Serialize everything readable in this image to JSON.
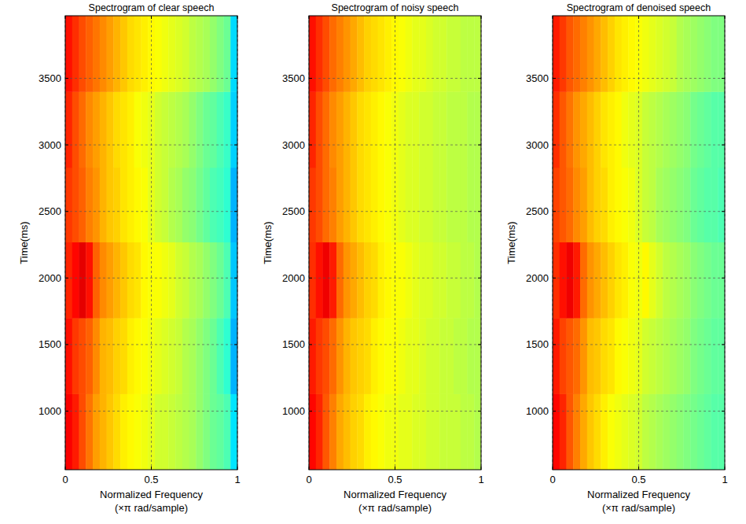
{
  "chart_data": [
    {
      "type": "heatmap",
      "title": "Spectrogram of clear speech",
      "xlabel": "Normalized Frequency\n(×π rad/sample)",
      "ylabel": "Time(ms)",
      "xlim": [
        0,
        1
      ],
      "ylim": [
        560,
        3970
      ],
      "xticks": [
        0,
        0.5,
        1
      ],
      "yticks": [
        1000,
        1500,
        2000,
        2500,
        3000,
        3500
      ],
      "grid": true,
      "clim": [
        0,
        100
      ],
      "time_edges": [
        560,
        1130,
        1700,
        2270,
        2830,
        3400,
        3970
      ],
      "freq_edges": [
        0,
        0.04,
        0.08,
        0.12,
        0.16,
        0.2,
        0.24,
        0.28,
        0.32,
        0.36,
        0.4,
        0.44,
        0.48,
        0.52,
        0.56,
        0.6,
        0.64,
        0.68,
        0.72,
        0.76,
        0.8,
        0.84,
        0.88,
        0.92,
        0.96,
        1
      ],
      "cells": [
        [
          88,
          85,
          80,
          76,
          72,
          70,
          68,
          66,
          64,
          63,
          62,
          61,
          60,
          58,
          58,
          57,
          56,
          55,
          54,
          52,
          50,
          48,
          47,
          45,
          35
        ],
        [
          86,
          82,
          80,
          78,
          74,
          70,
          69,
          67,
          66,
          64,
          63,
          62,
          61,
          60,
          59,
          58,
          57,
          55,
          54,
          52,
          50,
          48,
          45,
          42,
          30
        ],
        [
          84,
          87,
          90,
          86,
          78,
          74,
          72,
          70,
          68,
          66,
          65,
          63,
          62,
          62,
          61,
          60,
          58,
          57,
          55,
          54,
          52,
          50,
          48,
          45,
          32
        ],
        [
          82,
          80,
          78,
          75,
          73,
          70,
          68,
          67,
          65,
          64,
          63,
          62,
          60,
          58,
          57,
          55,
          54,
          52,
          51,
          49,
          47,
          45,
          44,
          42,
          30
        ],
        [
          84,
          80,
          77,
          74,
          72,
          70,
          68,
          66,
          65,
          64,
          62,
          61,
          60,
          58,
          57,
          56,
          55,
          54,
          52,
          50,
          48,
          47,
          45,
          43,
          33
        ],
        [
          86,
          83,
          80,
          78,
          76,
          74,
          72,
          70,
          68,
          66,
          65,
          64,
          63,
          62,
          61,
          60,
          59,
          58,
          56,
          55,
          54,
          52,
          50,
          48,
          34
        ]
      ]
    },
    {
      "type": "heatmap",
      "title": "Spectrogram of noisy speech",
      "xlabel": "Normalized Frequency\n(×π rad/sample)",
      "ylabel": "Time(ms)",
      "xlim": [
        0,
        1
      ],
      "ylim": [
        560,
        3970
      ],
      "xticks": [
        0,
        0.5,
        1
      ],
      "yticks": [
        1000,
        1500,
        2000,
        2500,
        3000,
        3500
      ],
      "grid": true,
      "clim": [
        0,
        100
      ],
      "time_edges": [
        560,
        1130,
        1700,
        2270,
        2830,
        3400,
        3970
      ],
      "freq_edges": [
        0,
        0.04,
        0.08,
        0.12,
        0.16,
        0.2,
        0.24,
        0.28,
        0.32,
        0.36,
        0.4,
        0.44,
        0.48,
        0.52,
        0.56,
        0.6,
        0.64,
        0.68,
        0.72,
        0.76,
        0.8,
        0.84,
        0.88,
        0.92,
        0.96,
        1
      ],
      "cells": [
        [
          87,
          84,
          79,
          75,
          71,
          69,
          67,
          66,
          64,
          63,
          62,
          61,
          61,
          60,
          60,
          59,
          59,
          58,
          58,
          57,
          57,
          57,
          56,
          56,
          55
        ],
        [
          85,
          82,
          80,
          77,
          73,
          70,
          68,
          67,
          66,
          64,
          63,
          62,
          62,
          61,
          60,
          60,
          59,
          58,
          58,
          57,
          57,
          56,
          56,
          55,
          55
        ],
        [
          83,
          86,
          89,
          85,
          77,
          73,
          71,
          69,
          67,
          66,
          64,
          63,
          62,
          62,
          61,
          60,
          59,
          59,
          58,
          58,
          57,
          57,
          56,
          56,
          55
        ],
        [
          82,
          80,
          77,
          75,
          72,
          70,
          68,
          66,
          65,
          64,
          63,
          62,
          61,
          60,
          59,
          59,
          58,
          58,
          57,
          57,
          56,
          56,
          56,
          55,
          55
        ],
        [
          84,
          80,
          77,
          74,
          72,
          70,
          68,
          66,
          65,
          64,
          63,
          62,
          61,
          60,
          59,
          59,
          58,
          58,
          57,
          57,
          56,
          56,
          56,
          55,
          55
        ],
        [
          86,
          83,
          80,
          77,
          75,
          73,
          71,
          69,
          67,
          66,
          65,
          64,
          63,
          62,
          61,
          60,
          60,
          59,
          58,
          58,
          57,
          57,
          56,
          56,
          56
        ]
      ]
    },
    {
      "type": "heatmap",
      "title": "Spectrogram of denoised speech",
      "xlabel": "Normalized Frequency\n(×π rad/sample)",
      "ylabel": "Time(ms)",
      "xlim": [
        0,
        1
      ],
      "ylim": [
        560,
        3970
      ],
      "xticks": [
        0,
        0.5,
        1
      ],
      "yticks": [
        1000,
        1500,
        2000,
        2500,
        3000,
        3500
      ],
      "grid": true,
      "clim": [
        0,
        100
      ],
      "time_edges": [
        560,
        1130,
        1700,
        2270,
        2830,
        3400,
        3970
      ],
      "freq_edges": [
        0,
        0.04,
        0.08,
        0.12,
        0.16,
        0.2,
        0.24,
        0.28,
        0.32,
        0.36,
        0.4,
        0.44,
        0.48,
        0.52,
        0.56,
        0.6,
        0.64,
        0.68,
        0.72,
        0.76,
        0.8,
        0.84,
        0.88,
        0.92,
        0.96,
        1
      ],
      "cells": [
        [
          87,
          84,
          79,
          75,
          71,
          68,
          66,
          64,
          62,
          61,
          60,
          59,
          58,
          56,
          55,
          54,
          53,
          52,
          51,
          50,
          49,
          48,
          47,
          46,
          46
        ],
        [
          85,
          81,
          79,
          77,
          73,
          69,
          68,
          66,
          65,
          63,
          62,
          61,
          60,
          58,
          57,
          56,
          55,
          54,
          53,
          52,
          50,
          49,
          48,
          47,
          47
        ],
        [
          83,
          86,
          89,
          85,
          77,
          73,
          71,
          69,
          67,
          65,
          64,
          62,
          61,
          63,
          60,
          58,
          56,
          55,
          54,
          53,
          51,
          50,
          49,
          48,
          48
        ],
        [
          81,
          79,
          77,
          74,
          72,
          69,
          67,
          66,
          64,
          63,
          62,
          61,
          59,
          57,
          56,
          54,
          53,
          52,
          51,
          50,
          48,
          47,
          46,
          46,
          45
        ],
        [
          83,
          79,
          76,
          73,
          71,
          69,
          67,
          65,
          64,
          63,
          61,
          60,
          59,
          57,
          56,
          55,
          54,
          53,
          52,
          51,
          49,
          48,
          47,
          46,
          46
        ],
        [
          85,
          82,
          79,
          77,
          75,
          73,
          71,
          69,
          67,
          65,
          64,
          63,
          62,
          61,
          60,
          59,
          58,
          57,
          55,
          54,
          53,
          52,
          51,
          50,
          50
        ]
      ]
    }
  ]
}
